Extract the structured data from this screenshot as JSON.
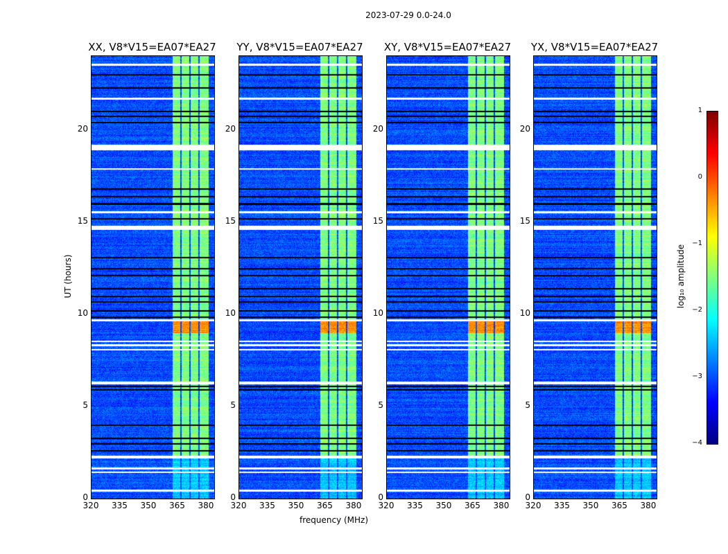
{
  "chart_data": {
    "type": "heatmap",
    "suptitle": "2023-07-29 0.0-24.0",
    "panels": [
      {
        "title": "XX, V8*V15=EA07*EA27",
        "pol": "XX"
      },
      {
        "title": "YY, V8*V15=EA07*EA27",
        "pol": "YY"
      },
      {
        "title": "XY, V8*V15=EA07*EA27",
        "pol": "XY"
      },
      {
        "title": "YX, V8*V15=EA07*EA27",
        "pol": "YX"
      }
    ],
    "xlabel": "frequency (MHz)",
    "ylabel": "UT (hours)",
    "xlim": [
      320,
      384
    ],
    "ylim": [
      0,
      24
    ],
    "xticks": [
      "320",
      "335",
      "350",
      "365",
      "380"
    ],
    "xtick_values": [
      320,
      335,
      350,
      365,
      380
    ],
    "yticks": [
      "0",
      "5",
      "10",
      "15",
      "20"
    ],
    "ytick_values": [
      0,
      5,
      10,
      15,
      20
    ],
    "colorbar": {
      "label": "log₁₀ amplitude",
      "range": [
        -4,
        1
      ],
      "ticks": [
        "−4",
        "−3",
        "−2",
        "−1",
        "0",
        "1"
      ],
      "tick_values": [
        -4,
        -3,
        -2,
        -1,
        0,
        1
      ],
      "colormap": "jet"
    },
    "rfi_band_mhz": [
      362,
      381
    ],
    "rfi_subband_gaps_mhz": [
      366.5,
      371.3,
      375.7
    ],
    "background_log_amp": -3,
    "rfi_log_amp": -1.5,
    "strong_rfi_hours": [
      9.0,
      9.7
    ],
    "flagged_hours": [
      [
        0.4,
        0.5
      ],
      [
        1.4,
        1.5
      ],
      [
        1.6,
        1.7
      ],
      [
        2.2,
        2.35
      ],
      [
        6.2,
        6.35
      ],
      [
        8.05,
        8.15
      ],
      [
        8.3,
        8.4
      ],
      [
        8.5,
        8.6
      ],
      [
        9.65,
        9.75
      ],
      [
        14.6,
        14.8
      ],
      [
        15.5,
        15.6
      ],
      [
        17.85,
        17.95
      ],
      [
        18.9,
        19.2
      ],
      [
        21.65,
        21.75
      ],
      [
        23.5,
        23.6
      ]
    ],
    "dropout_hours": [
      2.6,
      3.0,
      3.3,
      4.0,
      5.9,
      6.1,
      9.85,
      10.2,
      10.7,
      11.0,
      11.4,
      12.1,
      12.5,
      13.1,
      15.2,
      16.0,
      16.4,
      16.8,
      20.4,
      20.75,
      21.0,
      22.3,
      23.0
    ]
  }
}
